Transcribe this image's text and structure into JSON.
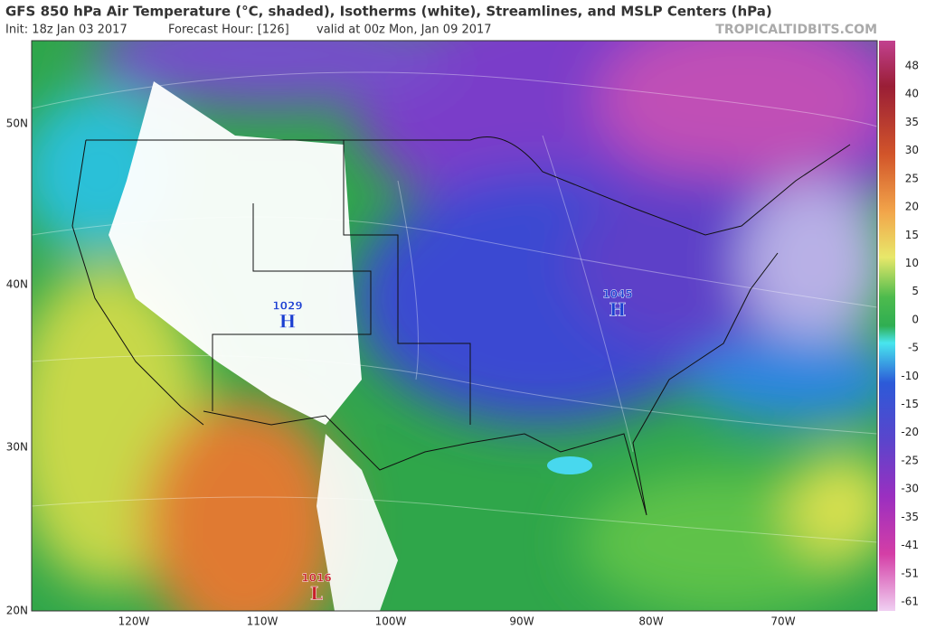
{
  "header": {
    "title": "GFS 850 hPa Air Temperature (°C, shaded), Isotherms (white), Streamlines, and MSLP Centers (hPa)",
    "init": "Init: 18z Jan 03 2017",
    "forecast_hour": "Forecast Hour: [126]",
    "valid": "valid at 00z Mon, Jan 09 2017",
    "brand": "TROPICALTIDBITS.COM"
  },
  "map": {
    "latitude_labels": [
      "50N",
      "40N",
      "30N",
      "20N"
    ],
    "longitude_labels": [
      "120W",
      "110W",
      "100W",
      "90W",
      "80W",
      "70W"
    ],
    "pressure_centers": [
      {
        "value": 1029,
        "symbol": "H"
      },
      {
        "value": 1045,
        "symbol": "H"
      },
      {
        "value": 1016,
        "symbol": "L"
      }
    ]
  },
  "colorbar": {
    "labels": [
      48,
      40,
      35,
      30,
      25,
      20,
      15,
      10,
      5,
      0,
      -5,
      -10,
      -15,
      -20,
      -25,
      -30,
      -35,
      -41,
      -51,
      -61
    ]
  }
}
